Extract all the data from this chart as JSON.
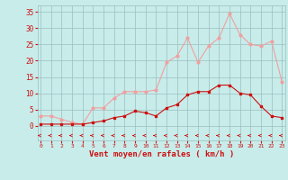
{
  "x": [
    0,
    1,
    2,
    3,
    4,
    5,
    6,
    7,
    8,
    9,
    10,
    11,
    12,
    13,
    14,
    15,
    16,
    17,
    18,
    19,
    20,
    21,
    22,
    23
  ],
  "rafales_vals": [
    3,
    3,
    2,
    1,
    0.5,
    5.5,
    5.5,
    8.5,
    10.5,
    10.5,
    10.5,
    11,
    19.5,
    21.5,
    27,
    19.5,
    24.5,
    27,
    34.5,
    28,
    25,
    24.5,
    26,
    13.5
  ],
  "moyen_vals": [
    0.5,
    0.5,
    0.5,
    0.5,
    0.5,
    1,
    1.5,
    2.5,
    3,
    4.5,
    4,
    3,
    5.5,
    6.5,
    9.5,
    10.5,
    10.5,
    12.5,
    12.5,
    10,
    9.5,
    6,
    3,
    2.5
  ],
  "bg_color": "#c8ecea",
  "line_color_rafales": "#f0a0a0",
  "line_color_moyen": "#cc1111",
  "grid_color": "#9bbfbf",
  "tick_color": "#cc1111",
  "xlabel": "Vent moyen/en rafales ( km/h )",
  "yticks": [
    0,
    5,
    10,
    15,
    20,
    25,
    30,
    35
  ],
  "ylim": [
    -4.5,
    37
  ],
  "xlim": [
    -0.3,
    23.3
  ]
}
